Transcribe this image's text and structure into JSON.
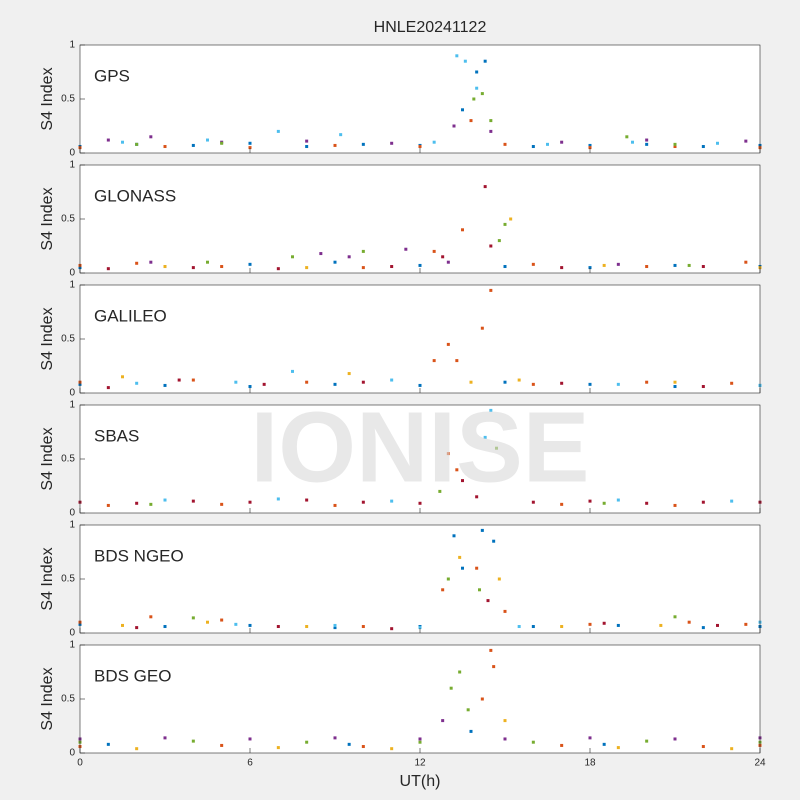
{
  "title": "HNLE20241122",
  "xlabel": "UT(h)",
  "watermark": "IONISE",
  "chart_data": [
    {
      "type": "scatter",
      "title": "GPS",
      "ylabel": "S4 Index",
      "xlim": [
        0,
        24
      ],
      "xticks": [
        0,
        6,
        12,
        18,
        24
      ],
      "ylim": [
        0,
        1
      ],
      "yticks": [
        0,
        0.5,
        1
      ],
      "series": [
        {
          "color": "#0072bd",
          "x": [
            0,
            2,
            4,
            6,
            8,
            10,
            12,
            13.5,
            14,
            14.3,
            16,
            18,
            20,
            22,
            24
          ],
          "values": [
            0.06,
            0.08,
            0.07,
            0.09,
            0.06,
            0.08,
            0.07,
            0.4,
            0.75,
            0.85,
            0.06,
            0.07,
            0.08,
            0.06,
            0.07
          ]
        },
        {
          "color": "#d95319",
          "x": [
            0,
            3,
            6,
            9,
            12,
            13.8,
            15,
            18,
            21,
            24
          ],
          "values": [
            0.05,
            0.06,
            0.05,
            0.07,
            0.06,
            0.3,
            0.08,
            0.05,
            0.06,
            0.05
          ]
        },
        {
          "color": "#7e2f8e",
          "x": [
            1,
            2.5,
            5,
            8,
            11,
            13.2,
            14.5,
            17,
            20,
            23.5
          ],
          "values": [
            0.12,
            0.15,
            0.1,
            0.11,
            0.09,
            0.25,
            0.2,
            0.1,
            0.12,
            0.11
          ]
        },
        {
          "color": "#4dbeee",
          "x": [
            1.5,
            4.5,
            7,
            9.2,
            12.5,
            13.3,
            13.6,
            14,
            16.5,
            19.5,
            22.5
          ],
          "values": [
            0.1,
            0.12,
            0.2,
            0.17,
            0.1,
            0.9,
            0.85,
            0.6,
            0.08,
            0.1,
            0.09
          ]
        },
        {
          "color": "#77ac30",
          "x": [
            2,
            5,
            13.9,
            14.2,
            14.5,
            19.3,
            21
          ],
          "values": [
            0.08,
            0.09,
            0.5,
            0.55,
            0.3,
            0.15,
            0.08
          ]
        }
      ]
    },
    {
      "type": "scatter",
      "title": "GLONASS",
      "ylabel": "S4 Index",
      "xlim": [
        0,
        24
      ],
      "xticks": [
        0,
        6,
        12,
        18,
        24
      ],
      "ylim": [
        0,
        1
      ],
      "yticks": [
        0,
        0.5,
        1
      ],
      "series": [
        {
          "color": "#0072bd",
          "x": [
            0,
            3,
            6,
            9,
            12,
            15,
            18,
            21,
            24
          ],
          "values": [
            0.05,
            0.06,
            0.08,
            0.1,
            0.07,
            0.06,
            0.05,
            0.07,
            0.06
          ]
        },
        {
          "color": "#d95319",
          "x": [
            0,
            2,
            5,
            10,
            12.5,
            13.5,
            16,
            20,
            23.5
          ],
          "values": [
            0.07,
            0.09,
            0.06,
            0.05,
            0.2,
            0.4,
            0.08,
            0.06,
            0.1
          ]
        },
        {
          "color": "#a2142f",
          "x": [
            1,
            4,
            7,
            11,
            12.8,
            14.3,
            14.5,
            17,
            22
          ],
          "values": [
            0.04,
            0.05,
            0.04,
            0.06,
            0.15,
            0.8,
            0.25,
            0.05,
            0.06
          ]
        },
        {
          "color": "#7e2f8e",
          "x": [
            2.5,
            8.5,
            9.5,
            11.5,
            13,
            19
          ],
          "values": [
            0.1,
            0.18,
            0.15,
            0.22,
            0.1,
            0.08
          ]
        },
        {
          "color": "#77ac30",
          "x": [
            4.5,
            7.5,
            10,
            14.8,
            15,
            21.5
          ],
          "values": [
            0.1,
            0.15,
            0.2,
            0.3,
            0.45,
            0.07
          ]
        },
        {
          "color": "#edb120",
          "x": [
            3,
            8,
            15.2,
            18.5,
            24
          ],
          "values": [
            0.06,
            0.05,
            0.5,
            0.07,
            0.05
          ]
        }
      ]
    },
    {
      "type": "scatter",
      "title": "GALILEO",
      "ylabel": "S4 Index",
      "xlim": [
        0,
        24
      ],
      "xticks": [
        0,
        6,
        12,
        18,
        24
      ],
      "ylim": [
        0,
        1
      ],
      "yticks": [
        0,
        0.5,
        1
      ],
      "series": [
        {
          "color": "#0072bd",
          "x": [
            0,
            3,
            6,
            9,
            12,
            15,
            18,
            21,
            24
          ],
          "values": [
            0.08,
            0.07,
            0.06,
            0.08,
            0.07,
            0.1,
            0.08,
            0.06,
            0.07
          ]
        },
        {
          "color": "#d95319",
          "x": [
            0,
            4,
            8,
            12.5,
            13,
            13.3,
            14.2,
            14.5,
            16,
            20,
            23
          ],
          "values": [
            0.1,
            0.12,
            0.1,
            0.3,
            0.45,
            0.3,
            0.6,
            0.95,
            0.08,
            0.1,
            0.09
          ]
        },
        {
          "color": "#a2142f",
          "x": [
            1,
            3.5,
            6.5,
            10,
            17,
            22
          ],
          "values": [
            0.05,
            0.12,
            0.08,
            0.1,
            0.09,
            0.06
          ]
        },
        {
          "color": "#4dbeee",
          "x": [
            2,
            5.5,
            7.5,
            11,
            19,
            24
          ],
          "values": [
            0.09,
            0.1,
            0.2,
            0.12,
            0.08,
            0.07
          ]
        },
        {
          "color": "#edb120",
          "x": [
            1.5,
            9.5,
            13.8,
            15.5,
            21
          ],
          "values": [
            0.15,
            0.18,
            0.1,
            0.12,
            0.1
          ]
        }
      ]
    },
    {
      "type": "scatter",
      "title": "SBAS",
      "ylabel": "S4 Index",
      "xlim": [
        0,
        24
      ],
      "xticks": [
        0,
        6,
        12,
        18,
        24
      ],
      "ylim": [
        0,
        1
      ],
      "yticks": [
        0,
        0.5,
        1
      ],
      "series": [
        {
          "color": "#a2142f",
          "x": [
            0,
            2,
            4,
            6,
            8,
            10,
            12,
            13.5,
            14,
            16,
            18,
            20,
            22,
            24
          ],
          "values": [
            0.1,
            0.09,
            0.11,
            0.1,
            0.12,
            0.1,
            0.09,
            0.3,
            0.15,
            0.1,
            0.11,
            0.09,
            0.1,
            0.1
          ]
        },
        {
          "color": "#d95319",
          "x": [
            1,
            5,
            9,
            13,
            13.3,
            17,
            21
          ],
          "values": [
            0.07,
            0.08,
            0.07,
            0.55,
            0.4,
            0.08,
            0.07
          ]
        },
        {
          "color": "#4dbeee",
          "x": [
            3,
            7,
            11,
            14.3,
            14.5,
            19,
            23
          ],
          "values": [
            0.12,
            0.13,
            0.11,
            0.7,
            0.95,
            0.12,
            0.11
          ]
        },
        {
          "color": "#77ac30",
          "x": [
            2.5,
            12.7,
            14.7,
            18.5
          ],
          "values": [
            0.08,
            0.2,
            0.6,
            0.09
          ]
        }
      ]
    },
    {
      "type": "scatter",
      "title": "BDS NGEO",
      "ylabel": "S4 Index",
      "xlim": [
        0,
        24
      ],
      "xticks": [
        0,
        6,
        12,
        18,
        24
      ],
      "ylim": [
        0,
        1
      ],
      "yticks": [
        0,
        0.5,
        1
      ],
      "series": [
        {
          "color": "#0072bd",
          "x": [
            0,
            3,
            6,
            9,
            12,
            13.2,
            13.5,
            14.2,
            14.6,
            16,
            19,
            22,
            24
          ],
          "values": [
            0.08,
            0.06,
            0.07,
            0.05,
            0.06,
            0.9,
            0.6,
            0.95,
            0.85,
            0.06,
            0.07,
            0.05,
            0.06
          ]
        },
        {
          "color": "#d95319",
          "x": [
            0,
            2.5,
            5,
            10,
            12.8,
            14,
            15,
            18,
            21.5,
            23.5
          ],
          "values": [
            0.1,
            0.15,
            0.12,
            0.06,
            0.4,
            0.6,
            0.2,
            0.08,
            0.1,
            0.08
          ]
        },
        {
          "color": "#edb120",
          "x": [
            1.5,
            4.5,
            8,
            13.4,
            14.8,
            17,
            20.5
          ],
          "values": [
            0.07,
            0.1,
            0.06,
            0.7,
            0.5,
            0.06,
            0.07
          ]
        },
        {
          "color": "#a2142f",
          "x": [
            2,
            7,
            11,
            14.4,
            18.5,
            22.5
          ],
          "values": [
            0.05,
            0.06,
            0.04,
            0.3,
            0.09,
            0.07
          ]
        },
        {
          "color": "#4dbeee",
          "x": [
            5.5,
            9,
            12,
            15.5,
            24
          ],
          "values": [
            0.08,
            0.07,
            0.05,
            0.06,
            0.1
          ]
        },
        {
          "color": "#77ac30",
          "x": [
            4,
            13,
            14.1,
            21
          ],
          "values": [
            0.14,
            0.5,
            0.4,
            0.15
          ]
        }
      ]
    },
    {
      "type": "scatter",
      "title": "BDS GEO",
      "ylabel": "S4 Index",
      "xlim": [
        0,
        24
      ],
      "xticks": [
        0,
        6,
        12,
        18,
        24
      ],
      "ylim": [
        0,
        1
      ],
      "yticks": [
        0,
        0.5,
        1
      ],
      "series": [
        {
          "color": "#7e2f8e",
          "x": [
            0,
            3,
            6,
            9,
            12,
            12.8,
            15,
            18,
            21,
            24
          ],
          "values": [
            0.13,
            0.14,
            0.13,
            0.14,
            0.13,
            0.3,
            0.13,
            0.14,
            0.13,
            0.14
          ]
        },
        {
          "color": "#77ac30",
          "x": [
            0,
            4,
            8,
            12,
            13.1,
            13.4,
            13.7,
            16,
            20,
            24
          ],
          "values": [
            0.1,
            0.11,
            0.1,
            0.1,
            0.6,
            0.75,
            0.4,
            0.1,
            0.11,
            0.1
          ]
        },
        {
          "color": "#d95319",
          "x": [
            0,
            5,
            10,
            14.2,
            14.5,
            14.6,
            17,
            22,
            24
          ],
          "values": [
            0.06,
            0.07,
            0.06,
            0.5,
            0.95,
            0.8,
            0.07,
            0.06,
            0.07
          ]
        },
        {
          "color": "#edb120",
          "x": [
            2,
            7,
            11,
            15,
            19,
            23
          ],
          "values": [
            0.04,
            0.05,
            0.04,
            0.3,
            0.05,
            0.04
          ]
        },
        {
          "color": "#0072bd",
          "x": [
            1,
            9.5,
            13.8,
            18.5
          ],
          "values": [
            0.08,
            0.08,
            0.2,
            0.08
          ]
        }
      ]
    }
  ]
}
